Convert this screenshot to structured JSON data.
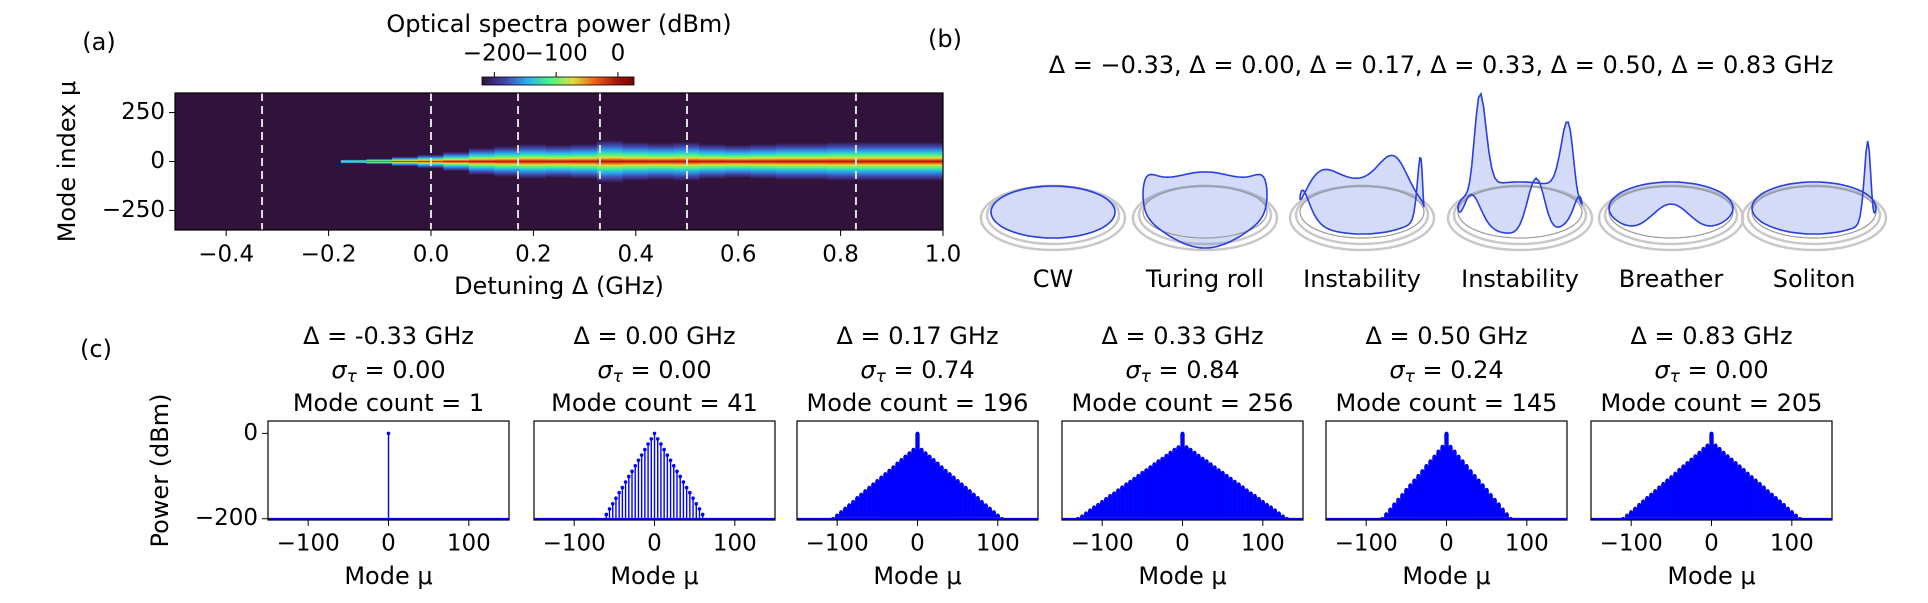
{
  "figure_labels": [
    "(a)",
    "(b)",
    "(c)"
  ],
  "diagram": {
    "header": "Δ = −0.33,  Δ = 0.00,  Δ = 0.17,  Δ = 0.33,  Δ = 0.50,  Δ = 0.83 GHz",
    "states": [
      "CW",
      "Turing roll",
      "Instability",
      "Instability",
      "Breather",
      "Soliton"
    ]
  },
  "sigma_symbol": "σ",
  "sigma_subscript": "τ",
  "chart_data": [
    {
      "type": "heatmap",
      "x_label": "Detuning Δ (GHz)",
      "y_label": "Mode index μ",
      "colorbar_label": "Optical spectra power (dBm)",
      "clim": [
        -220,
        26
      ],
      "cticks": [
        {
          "value": -200,
          "label": "−200"
        },
        {
          "value": -100,
          "label": "−100"
        },
        0
      ],
      "xlim": [
        -0.5,
        1.0
      ],
      "xticks": [
        {
          "value": -0.4,
          "label": "−0.4"
        },
        {
          "value": -0.2,
          "label": "−0.2"
        },
        {
          "value": 0,
          "label": "0.0"
        },
        0.2,
        0.4,
        0.6,
        0.8,
        {
          "value": 1,
          "label": "1.0"
        }
      ],
      "ylim": [
        -350,
        350
      ],
      "yticks": [
        {
          "value": -250,
          "label": "−250"
        },
        0,
        250
      ],
      "markers": [
        -0.33,
        0,
        0.17,
        0.33,
        0.5,
        0.83
      ],
      "x": [
        -0.5,
        -0.45,
        -0.4,
        -0.35,
        -0.3,
        -0.25,
        -0.2,
        -0.15,
        -0.1,
        -0.05,
        0,
        0.05,
        0.1,
        0.15,
        0.2,
        0.25,
        0.3,
        0.35,
        0.4,
        0.45,
        0.5,
        0.55,
        0.6,
        0.65,
        0.7,
        0.75,
        0.8,
        0.85,
        0.9,
        0.95,
        1.0
      ],
      "values": [
        0,
        0,
        0,
        0,
        0,
        0,
        0,
        10,
        15,
        25,
        35,
        50,
        70,
        80,
        90,
        85,
        90,
        110,
        100,
        95,
        100,
        90,
        85,
        90,
        95,
        95,
        100,
        100,
        100,
        100,
        100
      ]
    },
    {
      "type": "stem",
      "title": "Δ = -0.33 GHz",
      "sigma": " = 0.00",
      "mode_count": "Mode count = 1",
      "x_label": "Mode μ",
      "y_label": "Power (dBm)",
      "color": "#0000ff",
      "xlim": [
        -150,
        150
      ],
      "xticks": [
        {
          "value": -100,
          "label": "−100"
        },
        0,
        100
      ],
      "ylim": [
        -203,
        29
      ],
      "yticks": [
        {
          "value": -200,
          "label": "−200"
        },
        0
      ],
      "floor": -198,
      "x": [
        0
      ],
      "values": [
        0
      ]
    },
    {
      "type": "stem",
      "title": "Δ = 0.00 GHz",
      "sigma": " = 0.00",
      "mode_count": "Mode count = 41",
      "x_label": "Mode μ",
      "color": "#0000ff",
      "xlim": [
        -150,
        150
      ],
      "xticks": [
        {
          "value": -100,
          "label": "−100"
        },
        0,
        100
      ],
      "ylim": [
        -203,
        29
      ],
      "floor": -198,
      "x": [
        -60,
        -56,
        -52,
        -48,
        -44,
        -40,
        -36,
        -32,
        -28,
        -24,
        -20,
        -16,
        -12,
        -8,
        -4,
        0,
        4,
        8,
        12,
        16,
        20,
        24,
        28,
        32,
        36,
        40,
        44,
        48,
        52,
        56,
        60
      ],
      "values": [
        -190,
        -177,
        -165,
        -152,
        -139,
        -127,
        -114,
        -101,
        -89,
        -76,
        -63,
        -51,
        -38,
        -25,
        -13,
        0,
        -13,
        -25,
        -38,
        -51,
        -63,
        -76,
        -89,
        -101,
        -114,
        -127,
        -139,
        -152,
        -165,
        -177,
        -190
      ]
    },
    {
      "type": "stem",
      "title": "Δ = 0.17 GHz",
      "sigma": " = 0.74",
      "mode_count": "Mode count = 196",
      "x_label": "Mode μ",
      "color": "#0000ff",
      "xlim": [
        -150,
        150
      ],
      "xticks": [
        {
          "value": -100,
          "label": "−100"
        },
        0,
        100
      ],
      "ylim": [
        -203,
        29
      ],
      "floor": -198,
      "x": [
        -105,
        -100,
        -95,
        -90,
        -85,
        -80,
        -75,
        -70,
        -65,
        -60,
        -55,
        -50,
        -45,
        -40,
        -35,
        -30,
        -25,
        -20,
        -15,
        -10,
        -5,
        0,
        5,
        10,
        15,
        20,
        25,
        30,
        35,
        40,
        45,
        50,
        55,
        60,
        65,
        70,
        75,
        80,
        85,
        90,
        95,
        100,
        105
      ],
      "values": [
        -200,
        -192,
        -184,
        -176,
        -168,
        -160,
        -151,
        -143,
        -135,
        -127,
        -119,
        -111,
        -103,
        -95,
        -87,
        -79,
        -70,
        -62,
        -54,
        -46,
        -38,
        0,
        -38,
        -46,
        -54,
        -62,
        -70,
        -79,
        -87,
        -95,
        -103,
        -111,
        -119,
        -127,
        -135,
        -143,
        -151,
        -160,
        -168,
        -176,
        -184,
        -192,
        -200
      ]
    },
    {
      "type": "stem",
      "title": "Δ = 0.33 GHz",
      "sigma": " = 0.84",
      "mode_count": "Mode count = 256",
      "x_label": "Mode μ",
      "color": "#0000ff",
      "xlim": [
        -150,
        150
      ],
      "xticks": [
        {
          "value": -100,
          "label": "−100"
        },
        0,
        100
      ],
      "ylim": [
        -203,
        29
      ],
      "floor": -198,
      "x": [
        -130,
        -125,
        -120,
        -115,
        -110,
        -105,
        -100,
        -95,
        -90,
        -85,
        -80,
        -75,
        -70,
        -65,
        -60,
        -55,
        -50,
        -45,
        -40,
        -35,
        -30,
        -25,
        -20,
        -15,
        -10,
        -5,
        0,
        5,
        10,
        15,
        20,
        25,
        30,
        35,
        40,
        45,
        50,
        55,
        60,
        65,
        70,
        75,
        80,
        85,
        90,
        95,
        100,
        105,
        110,
        115,
        120,
        125,
        130
      ],
      "values": [
        -200,
        -194,
        -187,
        -180,
        -173,
        -167,
        -160,
        -153,
        -146,
        -140,
        -133,
        -126,
        -119,
        -113,
        -106,
        -99,
        -92,
        -86,
        -79,
        -72,
        -65,
        -59,
        -52,
        -45,
        -38,
        -32,
        0,
        -32,
        -38,
        -45,
        -52,
        -59,
        -65,
        -72,
        -79,
        -86,
        -92,
        -99,
        -106,
        -113,
        -119,
        -126,
        -133,
        -140,
        -146,
        -153,
        -160,
        -167,
        -173,
        -180,
        -187,
        -194,
        -200
      ]
    },
    {
      "type": "stem",
      "title": "Δ = 0.50 GHz",
      "sigma": " = 0.24",
      "mode_count": "Mode count = 145",
      "x_label": "Mode μ",
      "color": "#0000ff",
      "xlim": [
        -150,
        150
      ],
      "xticks": [
        {
          "value": -100,
          "label": "−100"
        },
        0,
        100
      ],
      "ylim": [
        -203,
        29
      ],
      "floor": -198,
      "x": [
        -80,
        -75,
        -70,
        -65,
        -60,
        -55,
        -50,
        -45,
        -40,
        -35,
        -30,
        -25,
        -20,
        -15,
        -10,
        -5,
        0,
        5,
        10,
        15,
        20,
        25,
        30,
        35,
        40,
        45,
        50,
        55,
        60,
        65,
        70,
        75,
        80
      ],
      "values": [
        -200,
        -189,
        -178,
        -166,
        -155,
        -144,
        -132,
        -121,
        -110,
        -99,
        -88,
        -76,
        -65,
        -54,
        -42,
        -31,
        0,
        -31,
        -42,
        -54,
        -65,
        -76,
        -88,
        -99,
        -110,
        -121,
        -132,
        -144,
        -155,
        -166,
        -178,
        -189,
        -200
      ]
    },
    {
      "type": "stem",
      "title": "Δ = 0.83 GHz",
      "sigma": " = 0.00",
      "mode_count": "Mode count = 205",
      "x_label": "Mode μ",
      "color": "#0000ff",
      "xlim": [
        -150,
        150
      ],
      "xticks": [
        {
          "value": -100,
          "label": "−100"
        },
        0,
        100
      ],
      "ylim": [
        -203,
        29
      ],
      "floor": -198,
      "x": [
        -110,
        -105,
        -100,
        -95,
        -90,
        -85,
        -80,
        -75,
        -70,
        -65,
        -60,
        -55,
        -50,
        -45,
        -40,
        -35,
        -30,
        -25,
        -20,
        -15,
        -10,
        -5,
        0,
        5,
        10,
        15,
        20,
        25,
        30,
        35,
        40,
        45,
        50,
        55,
        60,
        65,
        70,
        75,
        80,
        85,
        90,
        95,
        100,
        105,
        110
      ],
      "values": [
        -200,
        -192,
        -184,
        -176,
        -167,
        -159,
        -151,
        -143,
        -135,
        -126,
        -118,
        -110,
        -102,
        -94,
        -85,
        -77,
        -69,
        -61,
        -53,
        -45,
        -36,
        -28,
        0,
        -28,
        -36,
        -45,
        -53,
        -61,
        -69,
        -77,
        -85,
        -94,
        -102,
        -110,
        -118,
        -126,
        -135,
        -143,
        -151,
        -159,
        -167,
        -176,
        -184,
        -192,
        -200
      ]
    }
  ]
}
